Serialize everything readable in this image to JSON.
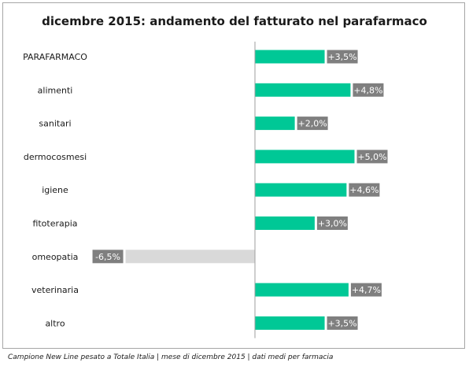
{
  "chart_data": {
    "type": "bar",
    "orientation": "horizontal",
    "title": "dicembre 2015: andamento del fatturato nel parafarmaco",
    "categories": [
      "PARAFARMACO",
      "alimenti",
      "sanitari",
      "dermocosmesi",
      "igiene",
      "fitoterapia",
      "omeopatia",
      "veterinaria",
      "altro"
    ],
    "values": [
      3.5,
      4.8,
      2.0,
      5.0,
      4.6,
      3.0,
      -6.5,
      4.7,
      3.5
    ],
    "data_labels": [
      "+3,5%",
      "+4,8%",
      "+2,0%",
      "+5,0%",
      "+4,6%",
      "+3,0%",
      "-6,5%",
      "+4,7%",
      "+3,5%"
    ],
    "xlim": [
      -6.5,
      5.0
    ],
    "grid": false,
    "colors": {
      "positive": "#00c896",
      "negative": "#d9d9d9",
      "label_box": "#7f7f7f",
      "axis": "#9e9e9e"
    }
  },
  "footnote": "Campione New Line pesato a Totale Italia | mese di dicembre 2015 | dati medi per farmacia"
}
